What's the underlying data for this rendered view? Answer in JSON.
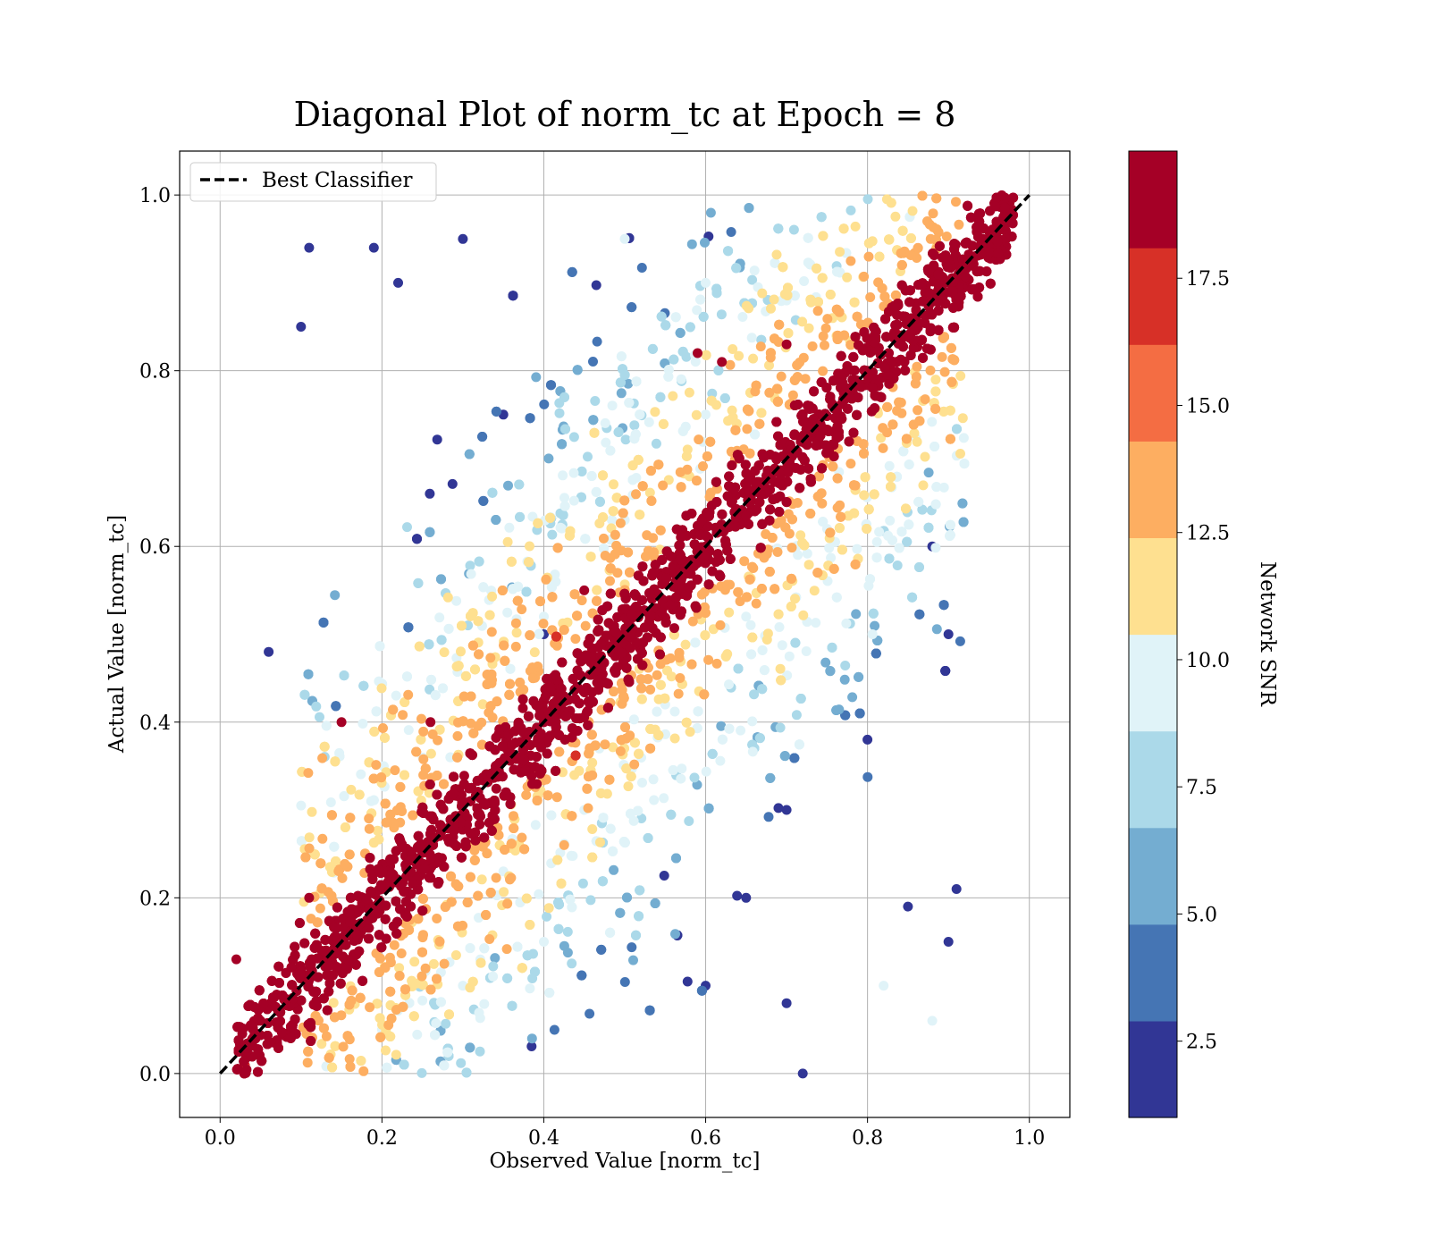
{
  "chart_data": {
    "type": "scatter",
    "title": "Diagonal Plot of norm_tc at Epoch = 8",
    "xlabel": "Observed Value [norm_tc]",
    "ylabel": "Actual Value [norm_tc]",
    "xlim": [
      -0.05,
      1.05
    ],
    "ylim": [
      -0.05,
      1.05
    ],
    "xticks": [
      0.0,
      0.2,
      0.4,
      0.6,
      0.8,
      1.0
    ],
    "yticks": [
      0.0,
      0.2,
      0.4,
      0.6,
      0.8,
      1.0
    ],
    "xtick_labels": [
      "0.0",
      "0.2",
      "0.4",
      "0.6",
      "0.8",
      "1.0"
    ],
    "ytick_labels": [
      "0.0",
      "0.2",
      "0.4",
      "0.6",
      "0.8",
      "1.0"
    ],
    "grid": true,
    "legend": {
      "position": "top-left",
      "entries": [
        "Best Classifier"
      ]
    },
    "reference_line": {
      "name": "Best Classifier",
      "style": "dashed",
      "color": "#000000",
      "x": [
        0.0,
        1.0
      ],
      "y": [
        0.0,
        1.0
      ]
    },
    "band_data": {
      "description_values": "points concentrated along y = x; colour encodes Network SNR",
      "core_band": {
        "snr": 18.5,
        "x_range": [
          0.02,
          0.98
        ],
        "half_width": 0.07
      },
      "upper_scatter_x_range": [
        0.1,
        0.9
      ],
      "lower_scatter_x_range": [
        0.1,
        0.92
      ]
    },
    "scatter_groups": [
      {
        "snr_level": "very high (>=17.5)",
        "points": [
          [
            0.05,
            0.06
          ],
          [
            0.1,
            0.12
          ],
          [
            0.2,
            0.21
          ],
          [
            0.3,
            0.31
          ],
          [
            0.4,
            0.4
          ],
          [
            0.5,
            0.5
          ],
          [
            0.6,
            0.6
          ],
          [
            0.7,
            0.7
          ],
          [
            0.8,
            0.8
          ],
          [
            0.9,
            0.9
          ],
          [
            0.97,
            0.97
          ],
          [
            0.11,
            0.2
          ],
          [
            0.45,
            0.55
          ],
          [
            0.7,
            0.83
          ],
          [
            0.62,
            0.81
          ],
          [
            0.59,
            0.82
          ],
          [
            0.02,
            0.13
          ],
          [
            0.15,
            0.4
          ],
          [
            0.26,
            0.4
          ]
        ]
      },
      {
        "snr_level": "mid (7.5-12.5)",
        "points": [
          [
            0.35,
            0.23
          ],
          [
            0.45,
            0.3
          ],
          [
            0.55,
            0.42
          ],
          [
            0.65,
            0.52
          ],
          [
            0.75,
            0.62
          ],
          [
            0.4,
            0.52
          ],
          [
            0.5,
            0.63
          ],
          [
            0.6,
            0.75
          ],
          [
            0.7,
            0.88
          ],
          [
            0.5,
            0.95
          ],
          [
            0.6,
            0.9
          ],
          [
            0.3,
            0.1
          ],
          [
            0.4,
            0.15
          ],
          [
            0.2,
            0.05
          ],
          [
            0.88,
            0.06
          ],
          [
            0.82,
            0.1
          ]
        ]
      },
      {
        "snr_level": "low (<5)",
        "points": [
          [
            0.11,
            0.94
          ],
          [
            0.1,
            0.85
          ],
          [
            0.19,
            0.94
          ],
          [
            0.22,
            0.9
          ],
          [
            0.3,
            0.95
          ],
          [
            0.35,
            0.75
          ],
          [
            0.4,
            0.5
          ],
          [
            0.7,
            0.3
          ],
          [
            0.8,
            0.38
          ],
          [
            0.9,
            0.5
          ],
          [
            0.91,
            0.21
          ],
          [
            0.9,
            0.15
          ],
          [
            0.72,
            0.0
          ],
          [
            0.7,
            0.08
          ],
          [
            0.65,
            0.2
          ],
          [
            0.6,
            0.1
          ],
          [
            0.88,
            0.6
          ],
          [
            0.85,
            0.19
          ],
          [
            0.06,
            0.48
          ]
        ]
      }
    ],
    "colorbar": {
      "label": "Network SNR",
      "vmin": 1.0,
      "vmax": 20.0,
      "tick_values": [
        2.5,
        5.0,
        7.5,
        10.0,
        12.5,
        15.0,
        17.5
      ],
      "tick_labels": [
        "2.5",
        "5.0",
        "7.5",
        "10.0",
        "12.5",
        "15.0",
        "17.5"
      ],
      "colors": [
        "#313695",
        "#4575b4",
        "#74add1",
        "#abd9e9",
        "#e0f3f8",
        "#fee090",
        "#fdae61",
        "#f46d43",
        "#d73027",
        "#a50026"
      ]
    }
  }
}
